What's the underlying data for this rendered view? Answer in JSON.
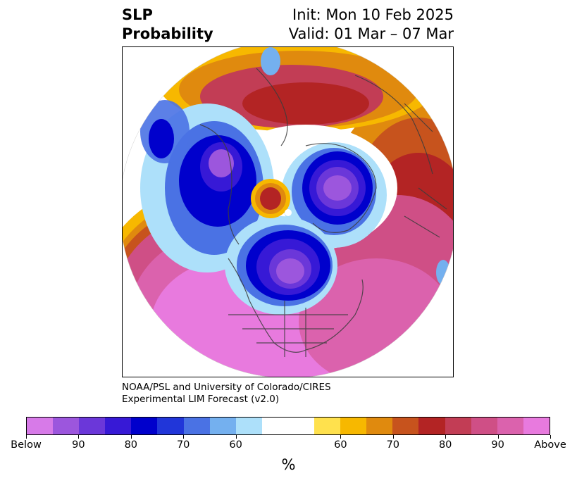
{
  "title": {
    "left_line1": "SLP",
    "left_line2": "Probability",
    "right_line1": "Init: Mon 10 Feb 2025",
    "right_line2": "Valid: 01 Mar – 07 Mar"
  },
  "credit": {
    "line1": "NOAA/PSL and University of Colorado/CIRES",
    "line2": "Experimental LIM Forecast (v2.0)"
  },
  "colorbar": {
    "colors": [
      "#d77ae8",
      "#9c56dd",
      "#6b37d9",
      "#3719d6",
      "#0000cc",
      "#2136d9",
      "#4a72e4",
      "#74b0ef",
      "#ade0fa",
      "#ffffff",
      "#ffffff",
      "#ffe14d",
      "#f7b800",
      "#e08a0e",
      "#c7531d",
      "#b32424",
      "#c23d55",
      "#cf4f86",
      "#db62ad",
      "#e87ade"
    ],
    "tick_labels": [
      "Below",
      "90",
      "80",
      "70",
      "60",
      "60",
      "70",
      "80",
      "90",
      "Above"
    ],
    "unit": "%"
  },
  "map": {
    "projection": "north-polar-stereographic",
    "variable": "sea-level pressure tercile probability",
    "features": [
      {
        "name": "below-normal center over Siberia / Arctic",
        "category": "Below"
      },
      {
        "name": "below-normal center over Canada / Greenland",
        "category": "Below"
      },
      {
        "name": "below-normal center over North Pacific / Alaska",
        "category": "Below"
      },
      {
        "name": "above-normal region over Atlantic and Europe",
        "category": "Above"
      },
      {
        "name": "above-normal region over central Asia",
        "category": "80"
      },
      {
        "name": "above-normal region over eastern Pacific / North America",
        "category": "Above"
      },
      {
        "name": "above-normal small center near North Pole",
        "category": "80"
      }
    ]
  }
}
